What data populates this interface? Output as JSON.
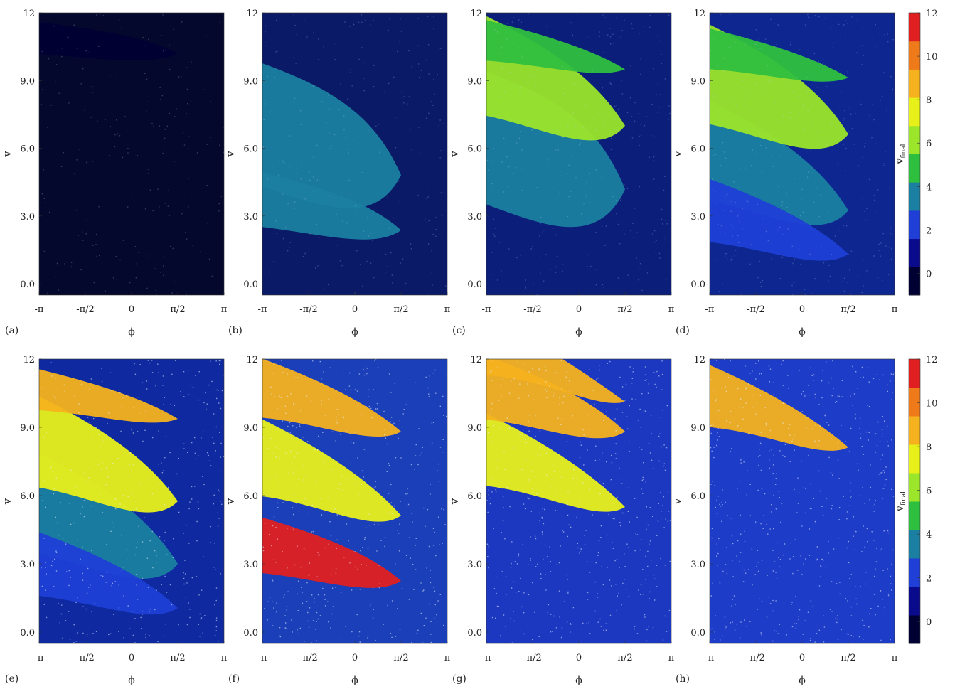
{
  "chart_data": {
    "type": "heatmap",
    "xlabel": "ϕ",
    "ylabel": "v",
    "x_tick_labels": [
      "-π",
      "-π/2",
      "0",
      "π/2",
      "π"
    ],
    "y_tick_labels": [
      "0.0",
      "3.0",
      "6.0",
      "9.0",
      "12"
    ],
    "y_ticks": [
      0,
      3,
      6,
      9,
      12
    ],
    "xlim": [
      -3.1416,
      3.1416
    ],
    "ylim": [
      -0.5,
      12
    ],
    "colorbar": {
      "label": "v",
      "label_sub": "final",
      "tick_labels": [
        "0",
        "2",
        "4",
        "6",
        "8",
        "10",
        "12"
      ],
      "ticks": [
        0,
        2,
        4,
        6,
        8,
        10,
        12
      ],
      "range": [
        -1,
        12
      ],
      "colors": [
        "#000033",
        "#0a0a8c",
        "#1f3fd6",
        "#1a7fa0",
        "#2fbf3f",
        "#9be52a",
        "#e8f01a",
        "#f5b21e",
        "#ee7a1a",
        "#e02020"
      ]
    },
    "panels": [
      {
        "label": "(a)",
        "background": "#04082c"
      },
      {
        "label": "(b)",
        "background": "#0a1a66"
      },
      {
        "label": "(c)",
        "background": "#0b1f7a"
      },
      {
        "label": "(d)",
        "background": "#0d2690"
      },
      {
        "label": "(e)",
        "background": "#0f2aa0"
      },
      {
        "label": "(f)",
        "background": "#1a3fb8"
      },
      {
        "label": "(g)",
        "background": "#1c38c0"
      },
      {
        "label": "(h)",
        "background": "#1d3cc8"
      }
    ]
  }
}
